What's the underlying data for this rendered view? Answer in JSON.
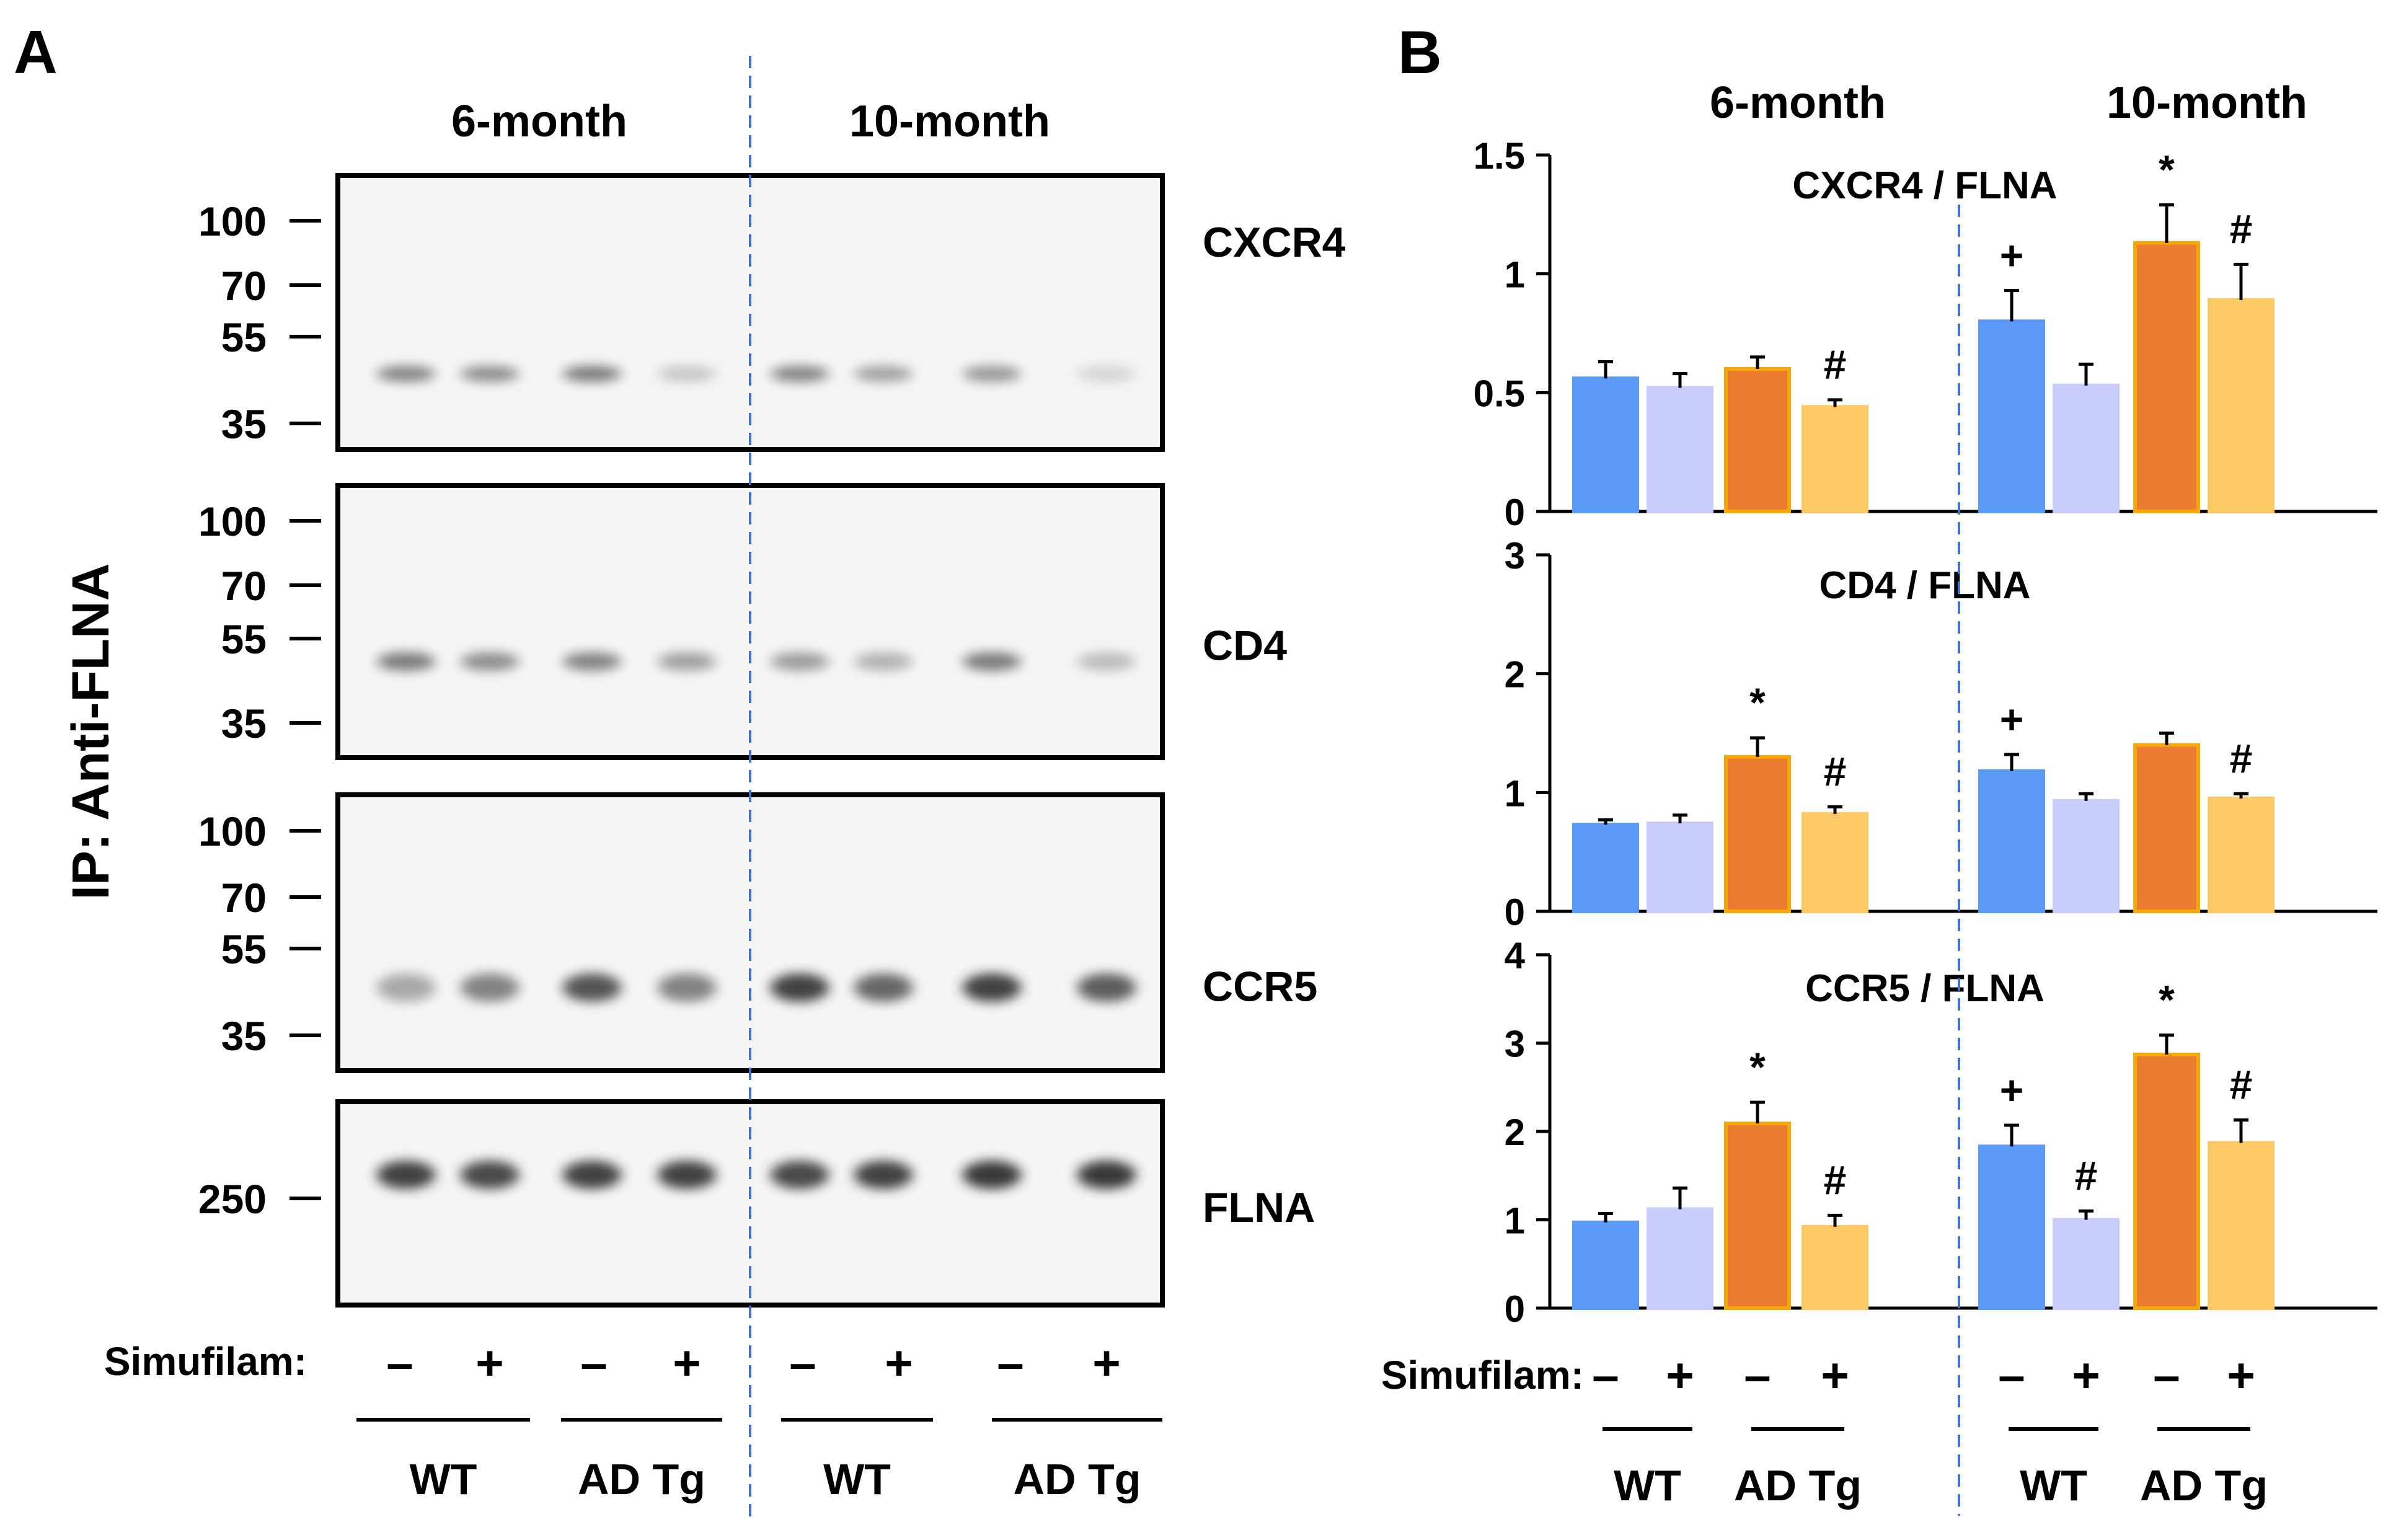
{
  "panels": {
    "a_letter": "A",
    "b_letter": "B"
  },
  "blot": {
    "ages": [
      "6-month",
      "10-month"
    ],
    "ip_label": "IP: Anti-FLNA",
    "treatment_label": "Simufilam:",
    "treatment_signs": [
      "–",
      "+",
      "–",
      "+",
      "–",
      "+",
      "–",
      "+"
    ],
    "groups": [
      "WT",
      "AD Tg",
      "WT",
      "AD Tg"
    ],
    "rows": [
      {
        "name": "CXCR4",
        "markers": [
          "100",
          "70",
          "55",
          "35"
        ],
        "bands": [
          0.55,
          0.5,
          0.6,
          0.2,
          0.55,
          0.4,
          0.45,
          0.12
        ]
      },
      {
        "name": "CD4",
        "markers": [
          "100",
          "70",
          "55",
          "35"
        ],
        "bands": [
          0.6,
          0.5,
          0.55,
          0.4,
          0.42,
          0.3,
          0.6,
          0.25
        ]
      },
      {
        "name": "CCR5",
        "markers": [
          "100",
          "70",
          "55",
          "35"
        ],
        "bands": [
          0.35,
          0.55,
          0.8,
          0.55,
          0.9,
          0.7,
          0.9,
          0.75
        ]
      },
      {
        "name": "FLNA",
        "markers": [
          "250"
        ],
        "bands": [
          0.9,
          0.85,
          0.9,
          0.9,
          0.85,
          0.9,
          0.95,
          0.95
        ]
      }
    ]
  },
  "chart_data": [
    {
      "type": "bar",
      "title": "CXCR4 / FLNA",
      "ylim": [
        0,
        1.5
      ],
      "yticks": [
        "0",
        "0.5",
        "1",
        "1.5"
      ],
      "categories": [
        "6-month WT –",
        "6-month WT +",
        "6-month AD Tg –",
        "6-month AD Tg +",
        "10-month WT –",
        "10-month WT +",
        "10-month AD Tg –",
        "10-month AD Tg +"
      ],
      "values": [
        0.56,
        0.52,
        0.6,
        0.44,
        0.8,
        0.53,
        1.13,
        0.89
      ],
      "errors": [
        0.07,
        0.06,
        0.05,
        0.03,
        0.13,
        0.09,
        0.16,
        0.15
      ],
      "marks": [
        "",
        "",
        "",
        "#",
        "+",
        "",
        "*",
        "#"
      ]
    },
    {
      "type": "bar",
      "title": "CD4 / FLNA",
      "ylim": [
        0,
        3
      ],
      "yticks": [
        "0",
        "1",
        "2",
        "3"
      ],
      "categories": [
        "6-month WT –",
        "6-month WT +",
        "6-month AD Tg –",
        "6-month AD Tg +",
        "10-month WT –",
        "10-month WT +",
        "10-month AD Tg –",
        "10-month AD Tg +"
      ],
      "values": [
        0.73,
        0.74,
        1.3,
        0.82,
        1.18,
        0.93,
        1.4,
        0.95
      ],
      "errors": [
        0.04,
        0.07,
        0.16,
        0.06,
        0.14,
        0.06,
        0.1,
        0.04
      ],
      "marks": [
        "",
        "",
        "*",
        "#",
        "+",
        "",
        "",
        "#"
      ]
    },
    {
      "type": "bar",
      "title": "CCR5 / FLNA",
      "ylim": [
        0,
        4
      ],
      "yticks": [
        "0",
        "1",
        "2",
        "3",
        "4"
      ],
      "categories": [
        "6-month WT –",
        "6-month WT +",
        "6-month AD Tg –",
        "6-month AD Tg +",
        "10-month WT –",
        "10-month WT +",
        "10-month AD Tg –",
        "10-month AD Tg +"
      ],
      "values": [
        0.97,
        1.12,
        2.09,
        0.92,
        1.83,
        1.0,
        2.87,
        1.87
      ],
      "errors": [
        0.1,
        0.24,
        0.24,
        0.13,
        0.24,
        0.1,
        0.22,
        0.26
      ],
      "marks": [
        "",
        "",
        "*",
        "#",
        "+",
        "#",
        "*",
        "#"
      ]
    }
  ],
  "chart_common": {
    "ages": [
      "6-month",
      "10-month"
    ],
    "treatment_label": "Simufilam:",
    "treatment_signs": [
      "–",
      "+",
      "–",
      "+",
      "–",
      "+",
      "–",
      "+"
    ],
    "groups": [
      "WT",
      "AD Tg",
      "WT",
      "AD Tg"
    ],
    "colors": [
      "#5b9bf7",
      "#c9cdfb",
      "#ec7c30",
      "#ffc966"
    ],
    "edge_colors": [
      "#5b9bf7",
      "#c9cdfb",
      "#f6a80b",
      "#ffc966"
    ],
    "divider_color": "#4472c4"
  }
}
